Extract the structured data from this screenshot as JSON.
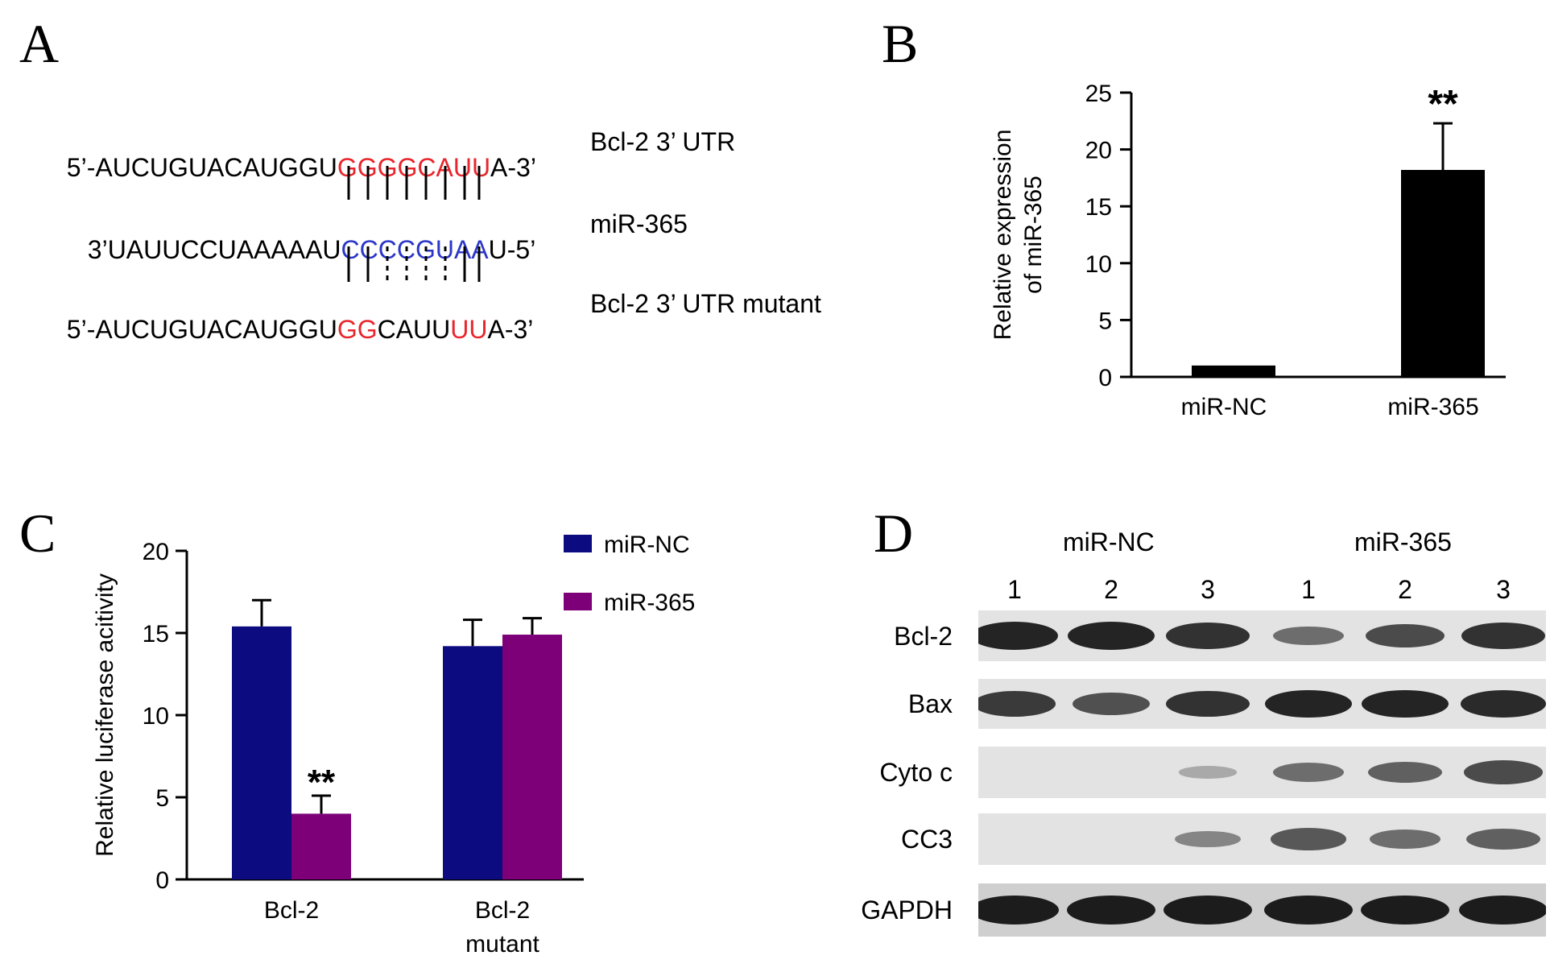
{
  "panelA": {
    "letter": "A",
    "rows": [
      {
        "segments": [
          {
            "text": "5’-AUCUGUACAUGGU",
            "color": "black"
          },
          {
            "text": "GGGGCAUU",
            "color": "red"
          },
          {
            "text": "A-3’",
            "color": "black"
          }
        ],
        "label": "Bcl-2 3’ UTR"
      },
      {
        "segments": [
          {
            "text": "3’UAUUCCUAAAAAU",
            "color": "black"
          },
          {
            "text": "CCCCGUAA",
            "color": "blue"
          },
          {
            "text": "U-5’",
            "color": "black"
          }
        ],
        "label": "miR-365"
      },
      {
        "segments": [
          {
            "text": "5’-AUCUGUACAUGGU",
            "color": "black"
          },
          {
            "text": "GG",
            "color": "red"
          },
          {
            "text": "CAUU",
            "color": "black"
          },
          {
            "text": "UU",
            "color": "red"
          },
          {
            "text": "A-3’",
            "color": "black"
          }
        ],
        "label": "Bcl-2 3’ UTR mutant"
      }
    ],
    "pairing_top": [
      "solid",
      "solid",
      "solid",
      "solid",
      "solid",
      "solid",
      "solid",
      "solid"
    ],
    "pairing_bottom": [
      "solid",
      "solid",
      "dashed",
      "dashed",
      "dashed",
      "dashed",
      "solid",
      "solid"
    ]
  },
  "panelB": {
    "letter": "B",
    "chart_data": {
      "type": "bar",
      "categories": [
        "miR-NC",
        "miR-365"
      ],
      "values": [
        1,
        18.2
      ],
      "errors": [
        0,
        4.1
      ],
      "ylim": [
        0,
        25
      ],
      "yticks": [
        0,
        5,
        10,
        15,
        20,
        25
      ],
      "ylabel_lines": [
        "Relative expression",
        "of miR-365"
      ],
      "annotations": [
        "",
        "**"
      ],
      "bar_color": "#000000"
    }
  },
  "panelC": {
    "letter": "C",
    "chart_data": {
      "type": "bar",
      "categories": [
        [
          "Bcl-2"
        ],
        [
          "Bcl-2",
          "mutant"
        ]
      ],
      "series": [
        {
          "name": "miR-NC",
          "values": [
            15.4,
            14.2
          ],
          "errors": [
            1.6,
            1.6
          ],
          "color": "#0d0b80"
        },
        {
          "name": "miR-365",
          "values": [
            4.0,
            14.9
          ],
          "errors": [
            1.1,
            1.0
          ],
          "color": "#7d0079"
        }
      ],
      "ylim": [
        0,
        20
      ],
      "yticks": [
        0,
        5,
        10,
        15,
        20
      ],
      "ylabel": "Relative luciferase acitivity",
      "annotations": [
        {
          "category": 0,
          "series": 1,
          "text": "**"
        }
      ],
      "legend_placement": "top-right"
    }
  },
  "panelD": {
    "letter": "D",
    "groups": [
      "miR-NC",
      "miR-365"
    ],
    "lanes": [
      "1",
      "2",
      "3",
      "1",
      "2",
      "3"
    ],
    "rows": [
      {
        "label": "Bcl-2",
        "intensity": [
          0.95,
          0.95,
          0.85,
          0.45,
          0.7,
          0.85
        ]
      },
      {
        "label": "Bax",
        "intensity": [
          0.8,
          0.65,
          0.85,
          0.95,
          0.95,
          0.9
        ]
      },
      {
        "label": "Cyto c",
        "intensity": [
          0,
          0,
          0.05,
          0.45,
          0.55,
          0.7
        ]
      },
      {
        "label": "CC3",
        "intensity": [
          0,
          0,
          0.3,
          0.6,
          0.45,
          0.55
        ]
      },
      {
        "label": "GAPDH",
        "intensity": [
          1,
          1,
          1,
          1,
          1,
          1
        ]
      }
    ]
  }
}
